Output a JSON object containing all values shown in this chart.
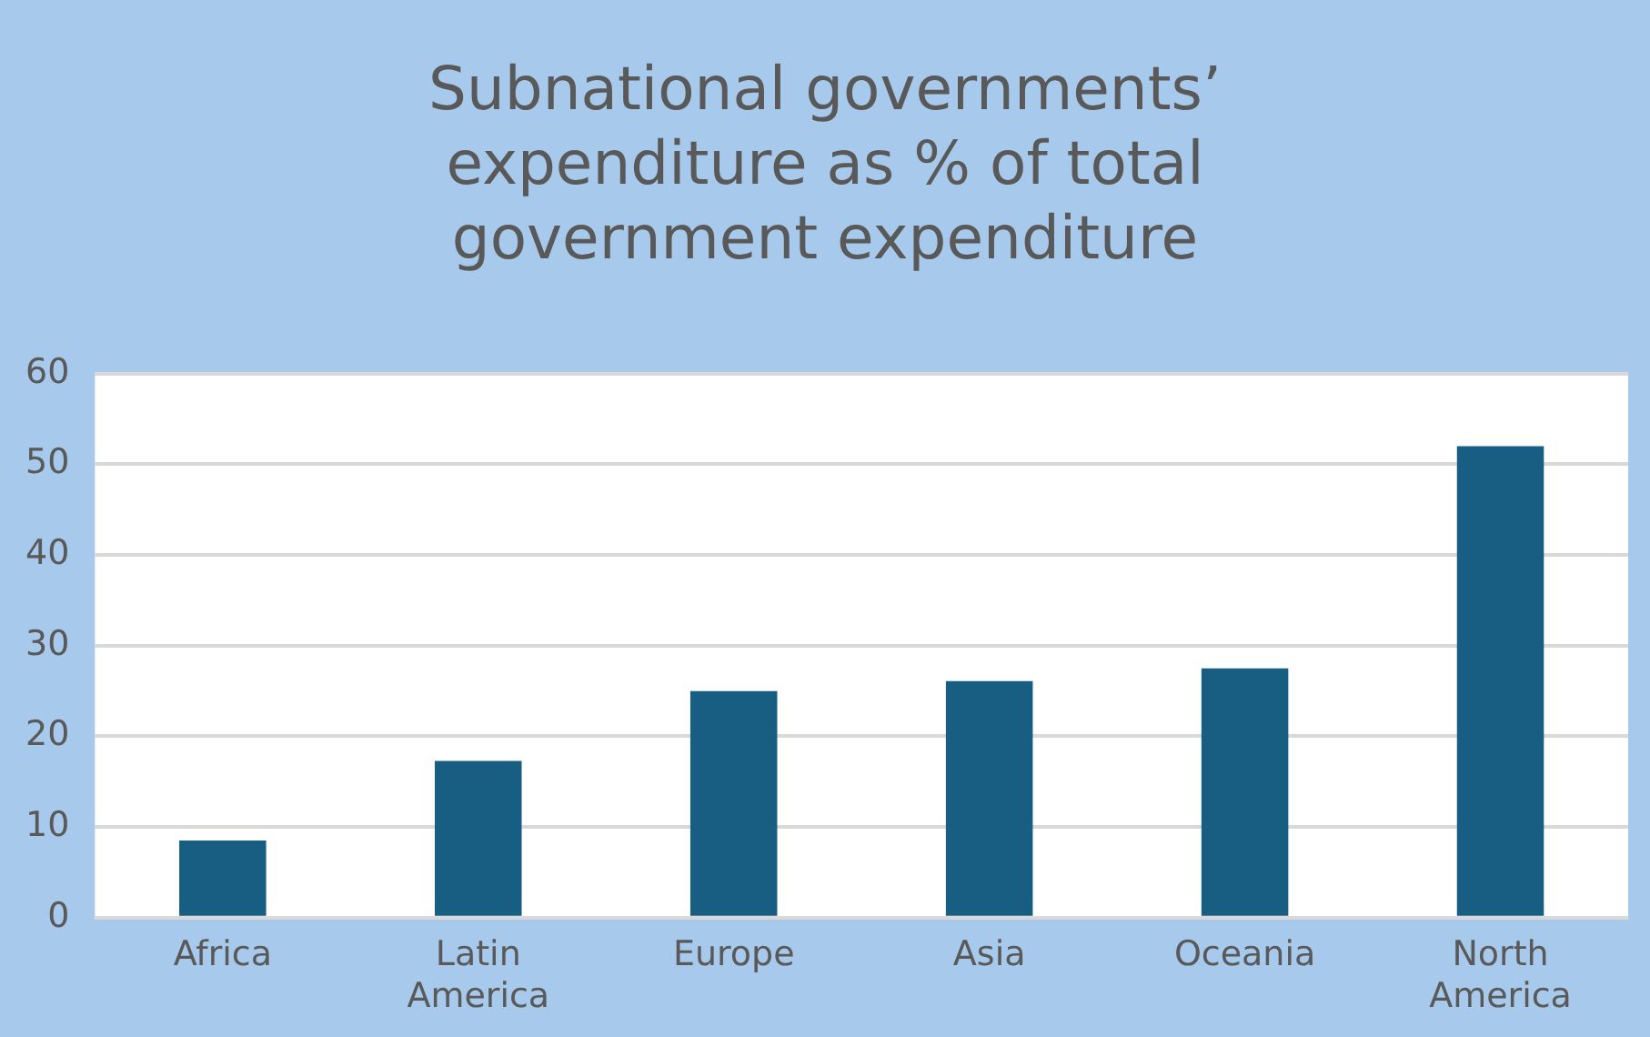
{
  "chart_data": {
    "type": "bar",
    "title": "Subnational governments’ expenditure as % of total government expenditure",
    "categories": [
      "Africa",
      "Latin America",
      "Europe",
      "Asia",
      "Oceania",
      "North America"
    ],
    "values": [
      8.5,
      17.3,
      25.0,
      26.1,
      27.5,
      52.0
    ],
    "color": "#175e82",
    "ylim": [
      0,
      60
    ],
    "yticks": [
      0,
      10,
      20,
      30,
      40,
      50,
      60
    ],
    "grid": "y",
    "legend": false
  }
}
